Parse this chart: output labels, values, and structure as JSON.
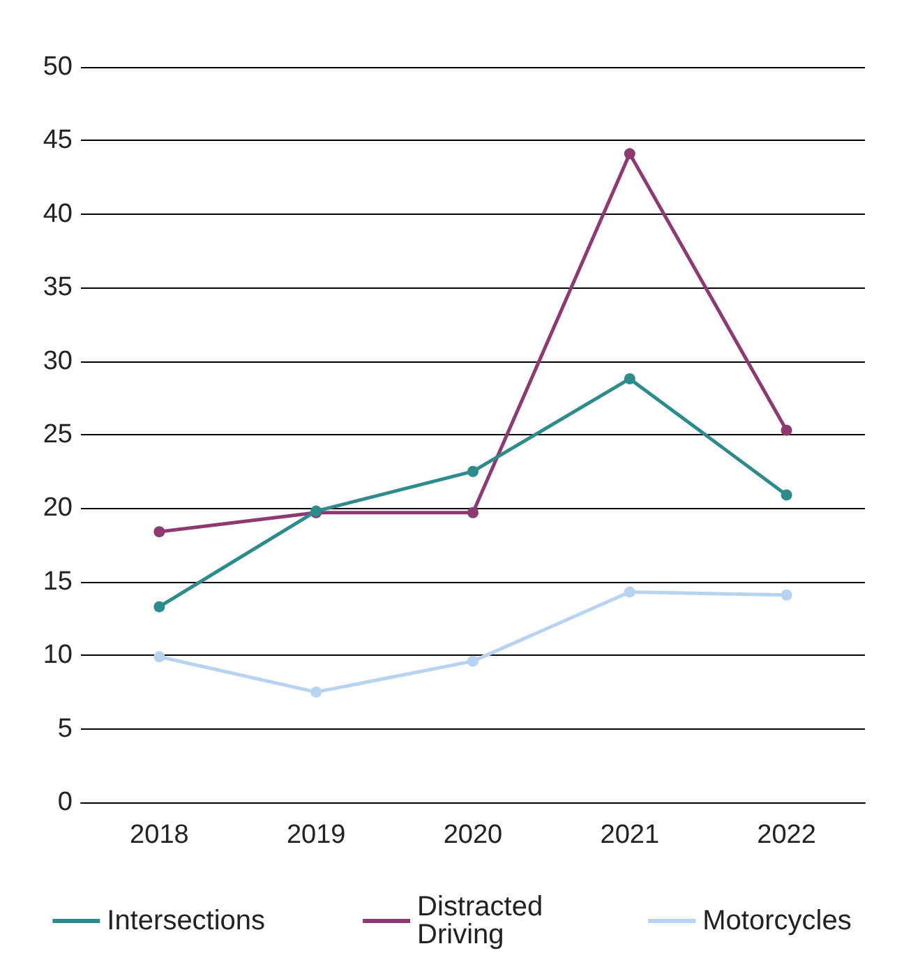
{
  "chart_data": {
    "type": "line",
    "categories": [
      "2018",
      "2019",
      "2020",
      "2021",
      "2022"
    ],
    "series": [
      {
        "name": "Intersections",
        "color": "#2e8b8b",
        "values": [
          13.3,
          19.8,
          22.5,
          28.8,
          20.9
        ]
      },
      {
        "name": "Distracted Driving",
        "color": "#8e3a72",
        "values": [
          18.4,
          19.7,
          19.7,
          44.1,
          25.3
        ]
      },
      {
        "name": "Motorcycles",
        "color": "#b8d3ef",
        "values": [
          9.9,
          7.5,
          9.6,
          14.3,
          14.1
        ]
      }
    ],
    "ylim": [
      0,
      50
    ],
    "yticks": [
      0,
      5,
      10,
      15,
      20,
      25,
      30,
      35,
      40,
      45,
      50
    ],
    "grid": "y",
    "legend": "bottom",
    "marker": "circle",
    "line_style": "solid"
  }
}
